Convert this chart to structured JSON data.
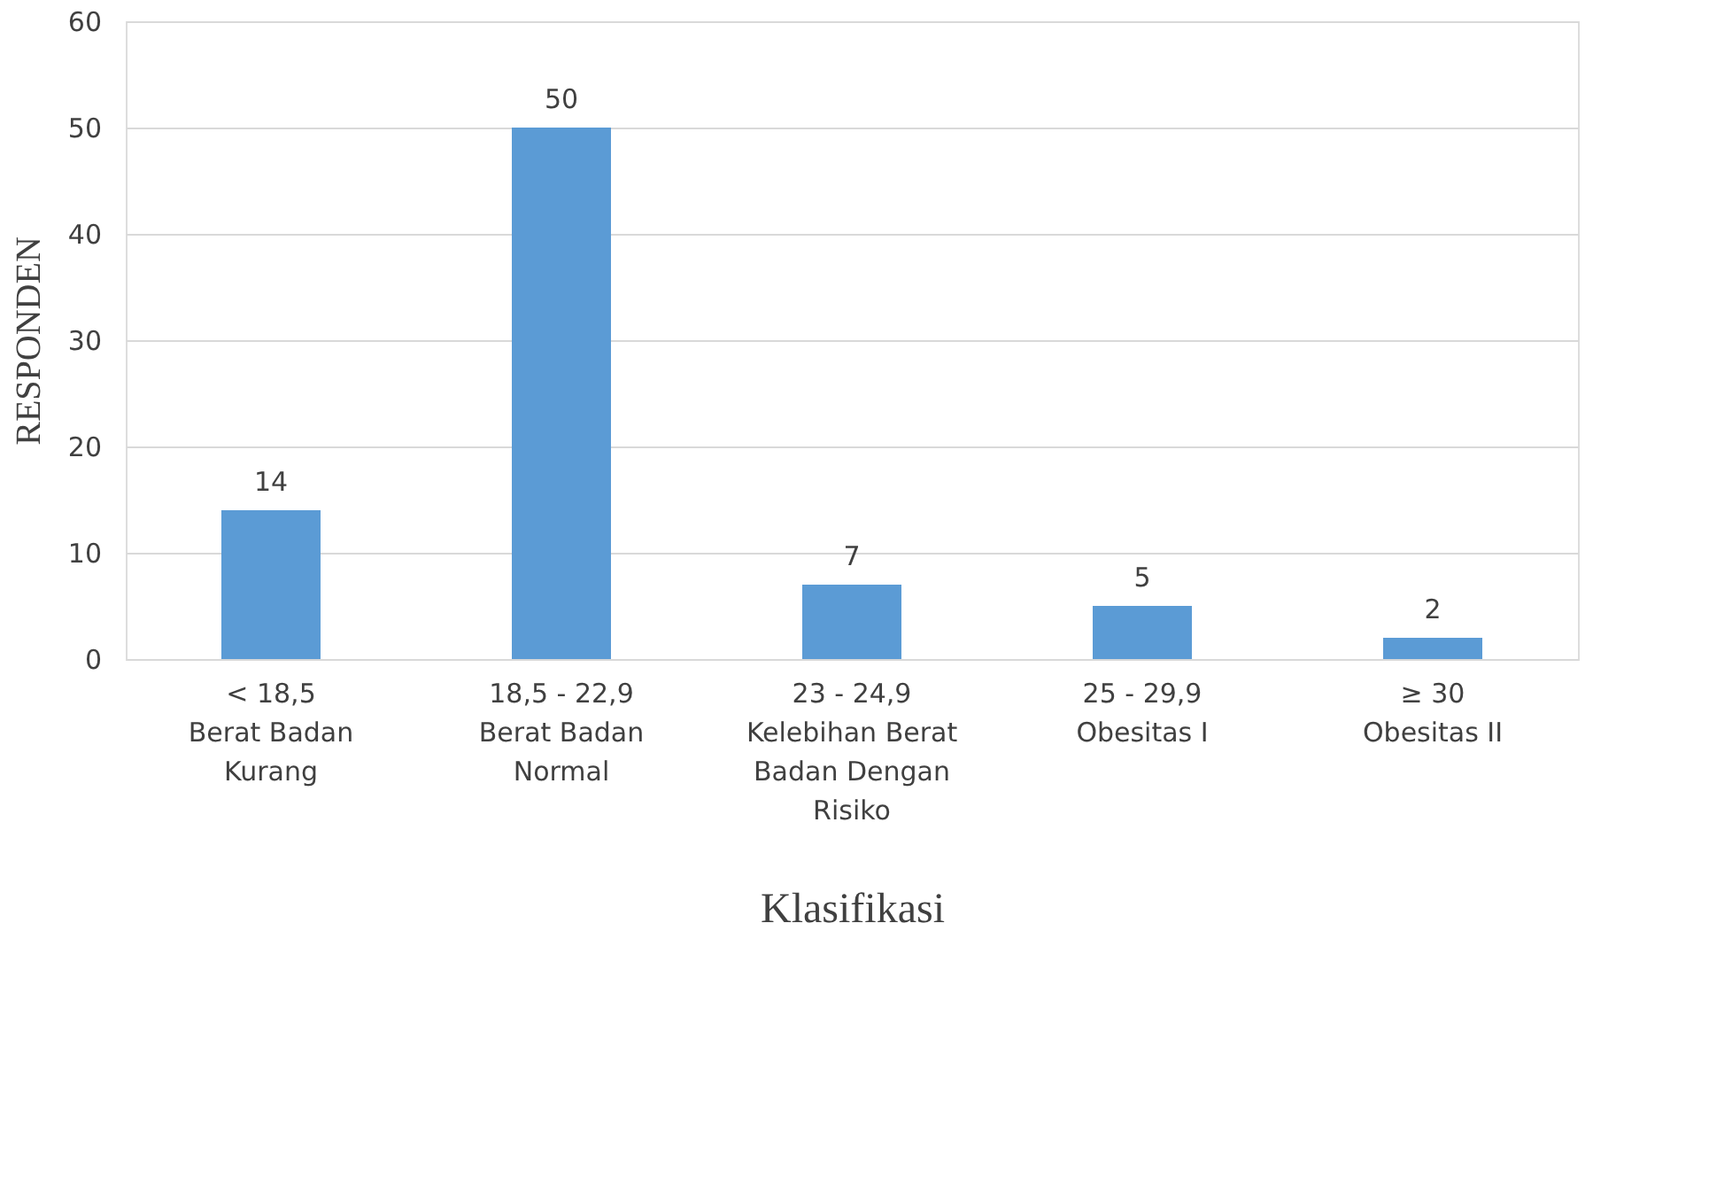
{
  "chart_data": {
    "type": "bar",
    "xlabel": "Klasifikasi",
    "ylabel": "RESPONDEN",
    "categories": [
      "< 18,5\n\nBerat Badan\nKurang",
      "18,5 - 22,9\n\nBerat Badan\nNormal",
      "23 - 24,9\n\nKelebihan Berat\nBadan Dengan\nRisiko",
      "25 - 29,9\n\nObesitas I",
      "≥ 30\n\nObesitas II"
    ],
    "values": [
      14,
      50,
      7,
      5,
      2
    ],
    "color": "#5b9bd5",
    "ylim": [
      0,
      60
    ],
    "yticks": [
      0,
      10,
      20,
      30,
      40,
      50,
      60
    ],
    "grid": "y",
    "data_labels": true
  }
}
